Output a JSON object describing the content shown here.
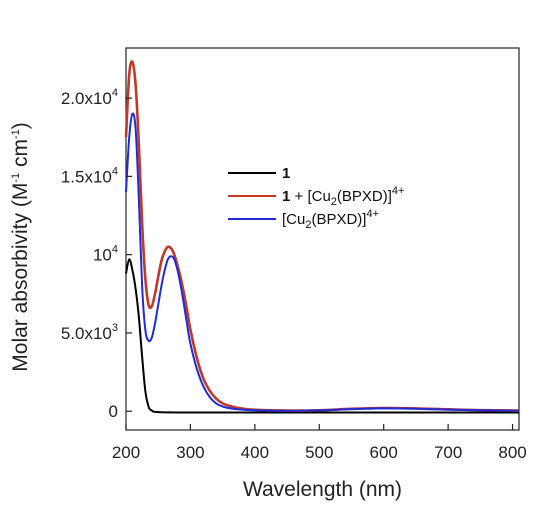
{
  "chart_data": {
    "type": "line",
    "xlabel": "Wavelength (nm)",
    "ylabel_main": "Molar absorbivity (M",
    "ylabel_sup1": "-1",
    "ylabel_mid": " cm",
    "ylabel_sup2": "-1",
    "ylabel_end": ")",
    "xlim": [
      200,
      810
    ],
    "ylim": [
      -1200,
      23200
    ],
    "x_ticks": [
      {
        "value": 200,
        "label": "200"
      },
      {
        "value": 300,
        "label": "300"
      },
      {
        "value": 400,
        "label": "400"
      },
      {
        "value": 500,
        "label": "500"
      },
      {
        "value": 600,
        "label": "600"
      },
      {
        "value": 700,
        "label": "700"
      },
      {
        "value": 800,
        "label": "800"
      }
    ],
    "y_ticks": [
      {
        "value": 0,
        "base": "0",
        "exp": ""
      },
      {
        "value": 5000,
        "base": "5.0x10",
        "exp": "3"
      },
      {
        "value": 10000,
        "base": "10",
        "exp": "4"
      },
      {
        "value": 15000,
        "base": "1.5x10",
        "exp": "4"
      },
      {
        "value": 20000,
        "base": "2.0x10",
        "exp": "4"
      }
    ],
    "grid": false,
    "legend_position": "right-upper",
    "series": [
      {
        "legend": {
          "bold": "1",
          "text": "",
          "sub": "",
          "after": "",
          "sup": ""
        },
        "color": "#000000",
        "x": [
          200,
          205,
          210,
          215,
          220,
          225,
          230,
          235,
          240,
          250,
          300,
          400,
          500,
          600,
          700,
          810
        ],
        "y": [
          8800,
          9700,
          9000,
          7800,
          6000,
          3500,
          1300,
          300,
          50,
          -60,
          -80,
          -80,
          -80,
          -80,
          -80,
          -80
        ]
      },
      {
        "legend": {
          "bold": "1",
          "text": " + [Cu",
          "sub": "2",
          "after": "(BPXD)]",
          "sup": "4+"
        },
        "color": "#c0392b",
        "x": [
          200,
          205,
          210,
          215,
          220,
          225,
          230,
          235,
          240,
          245,
          250,
          255,
          260,
          265,
          270,
          275,
          280,
          285,
          290,
          295,
          300,
          310,
          320,
          330,
          340,
          350,
          360,
          375,
          400,
          450,
          500,
          550,
          600,
          650,
          700,
          750,
          810
        ],
        "y": [
          17500,
          21500,
          22300,
          20800,
          17000,
          12000,
          8500,
          6800,
          6700,
          7500,
          8600,
          9600,
          10200,
          10500,
          10400,
          10000,
          9300,
          8500,
          7500,
          6400,
          5200,
          3400,
          2100,
          1300,
          800,
          500,
          350,
          200,
          90,
          40,
          60,
          150,
          200,
          180,
          120,
          70,
          40
        ]
      },
      {
        "legend": {
          "bold": "",
          "text": "[Cu",
          "sub": "2",
          "after": "(BPXD)]",
          "sup": "4+"
        },
        "color": "#1f2bd6",
        "x": [
          200,
          205,
          210,
          215,
          220,
          225,
          230,
          235,
          240,
          245,
          250,
          255,
          260,
          265,
          270,
          275,
          280,
          285,
          290,
          295,
          300,
          310,
          320,
          330,
          340,
          350,
          360,
          375,
          400,
          450,
          500,
          550,
          600,
          650,
          700,
          750,
          810
        ],
        "y": [
          14000,
          17500,
          19000,
          18000,
          13500,
          8000,
          5200,
          4500,
          4700,
          5600,
          6800,
          8000,
          9000,
          9700,
          9900,
          9700,
          9000,
          8000,
          6800,
          5500,
          4300,
          2700,
          1600,
          900,
          500,
          300,
          200,
          120,
          60,
          30,
          50,
          130,
          180,
          160,
          100,
          60,
          30
        ]
      }
    ]
  }
}
